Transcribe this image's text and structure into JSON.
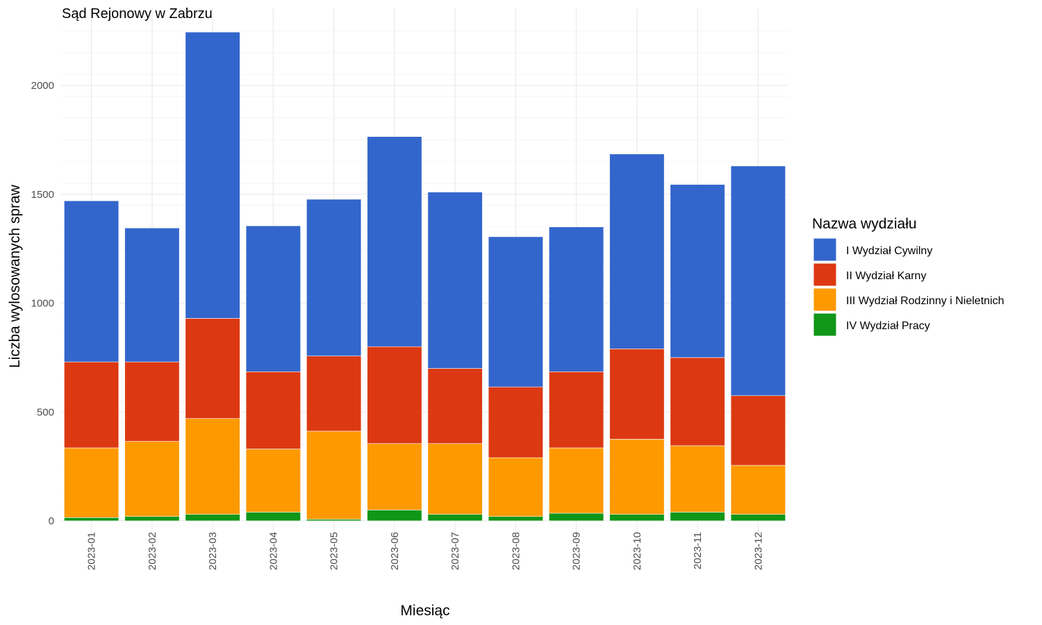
{
  "chart_data": {
    "type": "bar",
    "stacked": true,
    "title": "Sąd Rejonowy w Zabrzu",
    "xlabel": "Miesiąc",
    "ylabel": "Liczba wylosowanych spraw",
    "ylim": [
      0,
      2300
    ],
    "yticks": [
      0,
      500,
      1000,
      1500,
      2000
    ],
    "grid": true,
    "legend_position": "right",
    "legend_title": "Nazwa wydziału",
    "categories": [
      "2023-01",
      "2023-02",
      "2023-03",
      "2023-04",
      "2023-05",
      "2023-06",
      "2023-07",
      "2023-08",
      "2023-09",
      "2023-10",
      "2023-11",
      "2023-12"
    ],
    "series": [
      {
        "name": "I Wydział Cywilny",
        "color": "#3366cc",
        "values": [
          740,
          615,
          1315,
          670,
          720,
          965,
          810,
          690,
          665,
          895,
          795,
          1055
        ]
      },
      {
        "name": "II Wydział Karny",
        "color": "#dc3912",
        "values": [
          395,
          365,
          460,
          355,
          345,
          445,
          345,
          325,
          350,
          415,
          405,
          320
        ]
      },
      {
        "name": "III Wydział Rodzinny i Nieletnich",
        "color": "#ff9900",
        "values": [
          320,
          345,
          440,
          290,
          405,
          305,
          325,
          270,
          300,
          345,
          305,
          225
        ]
      },
      {
        "name": "IV Wydział Pracy",
        "color": "#109618",
        "values": [
          15,
          20,
          30,
          40,
          7,
          50,
          30,
          20,
          35,
          30,
          40,
          30
        ]
      }
    ]
  }
}
